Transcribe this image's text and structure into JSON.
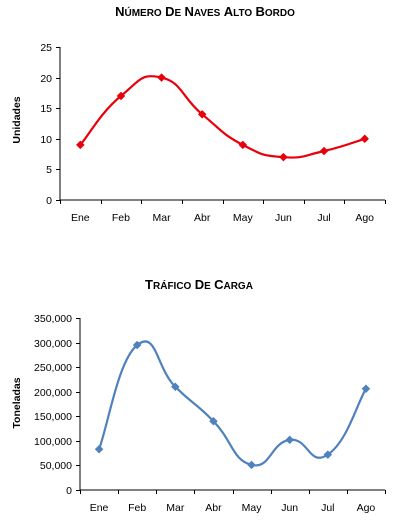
{
  "chart_data": [
    {
      "type": "line",
      "title": "Número de Naves Alto Bordo",
      "xlabel": "",
      "ylabel": "Unidades",
      "categories": [
        "Ene",
        "Feb",
        "Mar",
        "Abr",
        "May",
        "Jun",
        "Jul",
        "Ago"
      ],
      "series": [
        {
          "values": [
            9,
            17,
            20,
            14,
            9,
            7,
            8,
            10
          ]
        }
      ],
      "ylim": [
        0,
        25
      ],
      "yticks": [
        "0",
        "5",
        "10",
        "15",
        "20",
        "25"
      ],
      "line_color": "#e8000b",
      "marker_color": "#e8000b",
      "smooth": true,
      "grid": false,
      "legend": false
    },
    {
      "type": "line",
      "title": "Tráfico de Carga",
      "xlabel": "",
      "ylabel": "Toneladas",
      "categories": [
        "Ene",
        "Feb",
        "Mar",
        "Abr",
        "May",
        "Jun",
        "Jul",
        "Ago"
      ],
      "series": [
        {
          "values": [
            83000,
            295000,
            210000,
            140000,
            51000,
            102000,
            72000,
            206000
          ]
        }
      ],
      "ylim": [
        0,
        350000
      ],
      "yticks": [
        "0",
        "50,000",
        "100,000",
        "150,000",
        "200,000",
        "250,000",
        "300,000",
        "350,000"
      ],
      "line_color": "#4f81bd",
      "marker_color": "#4f81bd",
      "smooth": true,
      "grid": false,
      "legend": false
    }
  ]
}
